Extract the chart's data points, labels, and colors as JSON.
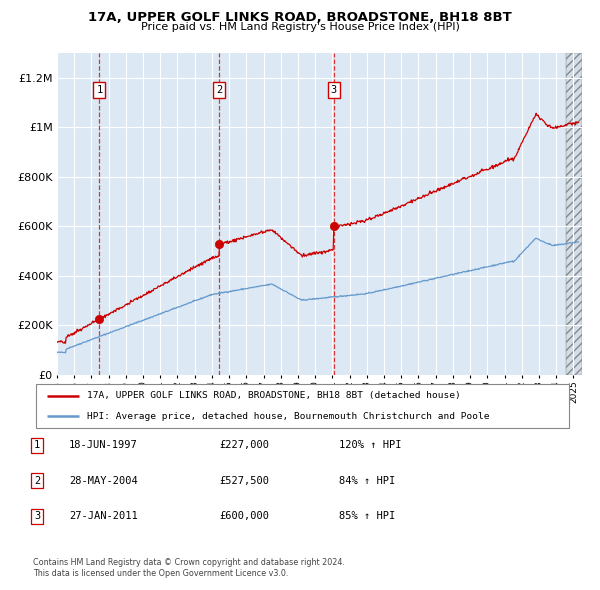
{
  "title1": "17A, UPPER GOLF LINKS ROAD, BROADSTONE, BH18 8BT",
  "title2": "Price paid vs. HM Land Registry's House Price Index (HPI)",
  "bg_color": "#dce9f5",
  "hpi_color": "#6699cc",
  "price_color": "#cc0000",
  "ylim_max": 1300000,
  "xlim_start": 1995.0,
  "xlim_end": 2025.5,
  "purchases": [
    {
      "date": 1997.46,
      "price": 227000,
      "label": "1"
    },
    {
      "date": 2004.41,
      "price": 527500,
      "label": "2"
    },
    {
      "date": 2011.07,
      "price": 600000,
      "label": "3"
    }
  ],
  "legend_line1": "17A, UPPER GOLF LINKS ROAD, BROADSTONE, BH18 8BT (detached house)",
  "legend_line2": "HPI: Average price, detached house, Bournemouth Christchurch and Poole",
  "table_rows": [
    {
      "num": "1",
      "date": "18-JUN-1997",
      "price": "£227,000",
      "hpi": "120% ↑ HPI"
    },
    {
      "num": "2",
      "date": "28-MAY-2004",
      "price": "£527,500",
      "hpi": "84% ↑ HPI"
    },
    {
      "num": "3",
      "date": "27-JAN-2011",
      "price": "£600,000",
      "hpi": "85% ↑ HPI"
    }
  ],
  "footnote1": "Contains HM Land Registry data © Crown copyright and database right 2024.",
  "footnote2": "This data is licensed under the Open Government Licence v3.0.",
  "yticks": [
    0,
    200000,
    400000,
    600000,
    800000,
    1000000,
    1200000
  ],
  "ytick_labels": [
    "£0",
    "£200K",
    "£400K",
    "£600K",
    "£800K",
    "£1M",
    "£1.2M"
  ]
}
